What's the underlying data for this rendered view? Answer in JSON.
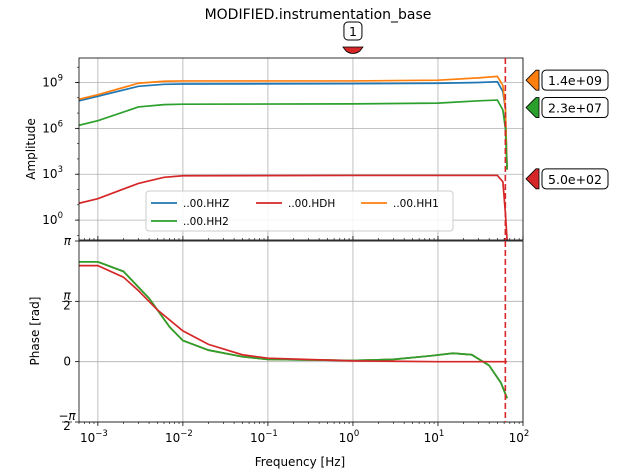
{
  "chart_data": {
    "type": "line",
    "title": "MODIFIED.instrumentation_base",
    "xlabel": "Frequency [Hz]",
    "x_scale": "log",
    "xlim": [
      0.0006,
      100
    ],
    "x_tick_labels": [
      {
        "exp": -3,
        "label": "10",
        "sup": "−3"
      },
      {
        "exp": -2,
        "label": "10",
        "sup": "−2"
      },
      {
        "exp": -1,
        "label": "10",
        "sup": "−1"
      },
      {
        "exp": 0,
        "label": "10",
        "sup": "0"
      },
      {
        "exp": 1,
        "label": "10",
        "sup": "1"
      },
      {
        "exp": 2,
        "label": "10",
        "sup": "2"
      }
    ],
    "grid": true,
    "nyquist_frequency_hz": 62,
    "top_marker_label": "1",
    "top_marker_frequency_hz": 1,
    "amplitude": {
      "ylabel": "Amplitude",
      "y_scale": "log",
      "ylim_log10": [
        -1.3,
        10.6
      ],
      "y_tick_labels": [
        {
          "exp": 0,
          "label": "10",
          "sup": "0"
        },
        {
          "exp": 3,
          "label": "10",
          "sup": "3"
        },
        {
          "exp": 6,
          "label": "10",
          "sup": "6"
        },
        {
          "exp": 9,
          "label": "10",
          "sup": "9"
        }
      ]
    },
    "phase": {
      "ylabel": "Phase [rad]",
      "ylim": [
        -1.5708,
        3.1416
      ],
      "y_tick_labels": [
        {
          "value": -1.5708,
          "label": "−π/2"
        },
        {
          "value": 0,
          "label": "0"
        },
        {
          "value": 1.5708,
          "label": "π/2"
        },
        {
          "value": 3.1416,
          "label": "π"
        }
      ]
    },
    "series": [
      {
        "name": "..00.HHZ",
        "color": "#1f77b4",
        "amplitude_points": [
          [
            0.0006,
            7.8
          ],
          [
            0.001,
            8.1
          ],
          [
            0.003,
            8.75
          ],
          [
            0.006,
            8.88
          ],
          [
            0.01,
            8.9
          ],
          [
            1,
            8.92
          ],
          [
            10,
            8.95
          ],
          [
            30,
            9.0
          ],
          [
            50,
            9.05
          ],
          [
            58,
            8.4
          ],
          [
            62,
            7.3
          ],
          [
            65,
            3.3
          ]
        ],
        "phase_points": [
          [
            0.0006,
            2.6
          ],
          [
            0.001,
            2.6
          ],
          [
            0.002,
            2.35
          ],
          [
            0.004,
            1.65
          ],
          [
            0.007,
            0.9
          ],
          [
            0.01,
            0.55
          ],
          [
            0.02,
            0.3
          ],
          [
            0.05,
            0.13
          ],
          [
            0.1,
            0.06
          ],
          [
            1,
            0.03
          ],
          [
            3,
            0.06
          ],
          [
            8,
            0.15
          ],
          [
            15,
            0.22
          ],
          [
            25,
            0.18
          ],
          [
            40,
            -0.1
          ],
          [
            55,
            -0.55
          ],
          [
            65,
            -0.95
          ]
        ]
      },
      {
        "name": "..00.HH1",
        "color": "#ff7f0e",
        "amplitude_points": [
          [
            0.0006,
            7.9
          ],
          [
            0.001,
            8.2
          ],
          [
            0.003,
            8.95
          ],
          [
            0.006,
            9.08
          ],
          [
            0.01,
            9.1
          ],
          [
            1,
            9.1
          ],
          [
            10,
            9.15
          ],
          [
            30,
            9.3
          ],
          [
            50,
            9.4
          ],
          [
            58,
            8.8
          ],
          [
            62,
            7.3
          ],
          [
            65,
            3.3
          ]
        ],
        "phase_points": [
          [
            0.0006,
            2.6
          ],
          [
            0.001,
            2.6
          ],
          [
            0.002,
            2.35
          ],
          [
            0.004,
            1.65
          ],
          [
            0.007,
            0.9
          ],
          [
            0.01,
            0.55
          ],
          [
            0.02,
            0.3
          ],
          [
            0.05,
            0.13
          ],
          [
            0.1,
            0.06
          ],
          [
            1,
            0.03
          ],
          [
            3,
            0.06
          ],
          [
            8,
            0.15
          ],
          [
            15,
            0.22
          ],
          [
            25,
            0.18
          ],
          [
            40,
            -0.1
          ],
          [
            55,
            -0.55
          ],
          [
            65,
            -0.95
          ]
        ]
      },
      {
        "name": "..00.HH2",
        "color": "#2ca02c",
        "amplitude_points": [
          [
            0.0006,
            6.2
          ],
          [
            0.001,
            6.5
          ],
          [
            0.003,
            7.4
          ],
          [
            0.006,
            7.55
          ],
          [
            0.01,
            7.58
          ],
          [
            1,
            7.6
          ],
          [
            10,
            7.65
          ],
          [
            30,
            7.8
          ],
          [
            50,
            7.85
          ],
          [
            58,
            7.2
          ],
          [
            62,
            6.0
          ],
          [
            65,
            3.3
          ]
        ],
        "phase_points": [
          [
            0.0006,
            2.6
          ],
          [
            0.001,
            2.6
          ],
          [
            0.002,
            2.35
          ],
          [
            0.004,
            1.65
          ],
          [
            0.007,
            0.9
          ],
          [
            0.01,
            0.55
          ],
          [
            0.02,
            0.3
          ],
          [
            0.05,
            0.13
          ],
          [
            0.1,
            0.06
          ],
          [
            1,
            0.03
          ],
          [
            3,
            0.06
          ],
          [
            8,
            0.15
          ],
          [
            15,
            0.22
          ],
          [
            25,
            0.18
          ],
          [
            40,
            -0.1
          ],
          [
            55,
            -0.55
          ],
          [
            65,
            -0.95
          ]
        ]
      },
      {
        "name": "..00.HDH",
        "color": "#d62728",
        "amplitude_points": [
          [
            0.0006,
            1.1
          ],
          [
            0.001,
            1.4
          ],
          [
            0.003,
            2.4
          ],
          [
            0.006,
            2.8
          ],
          [
            0.01,
            2.9
          ],
          [
            1,
            2.92
          ],
          [
            10,
            2.92
          ],
          [
            50,
            2.92
          ],
          [
            58,
            2.5
          ],
          [
            62,
            0.5
          ],
          [
            65,
            -1.3
          ]
        ],
        "phase_points": [
          [
            0.0006,
            2.5
          ],
          [
            0.001,
            2.5
          ],
          [
            0.002,
            2.2
          ],
          [
            0.003,
            1.85
          ],
          [
            0.005,
            1.35
          ],
          [
            0.01,
            0.8
          ],
          [
            0.02,
            0.45
          ],
          [
            0.05,
            0.18
          ],
          [
            0.1,
            0.09
          ],
          [
            1,
            0.02
          ],
          [
            10,
            0.0
          ],
          [
            65,
            0.0
          ]
        ]
      }
    ],
    "markers": [
      {
        "label": "1.4e+09",
        "color": "#ff7f0e",
        "log10_value": 9.15
      },
      {
        "label": "2.3e+07",
        "color": "#2ca02c",
        "log10_value": 7.36
      },
      {
        "label": "5.0e+02",
        "color": "#d62728",
        "log10_value": 2.7
      }
    ]
  }
}
